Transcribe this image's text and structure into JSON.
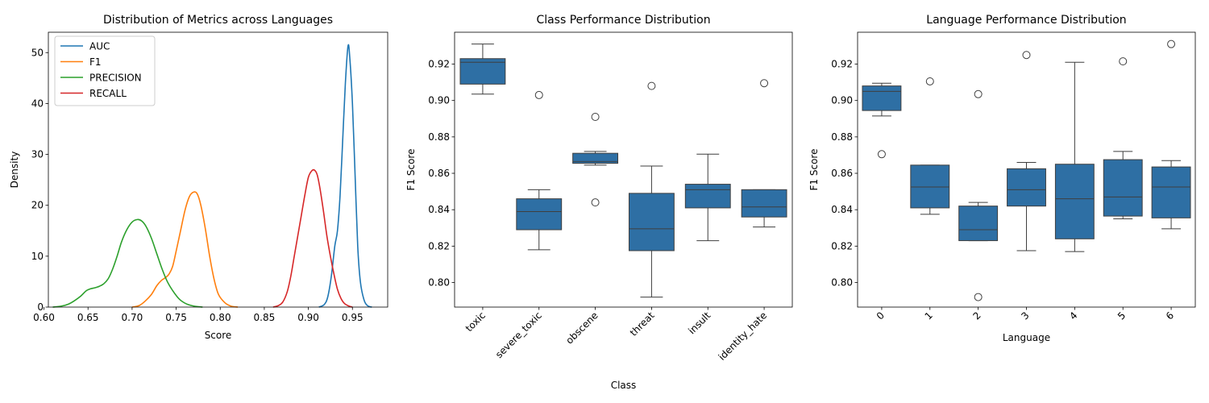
{
  "chart_data": [
    {
      "type": "line",
      "subtype": "kde",
      "title": "Distribution of Metrics across Languages",
      "xlabel": "Score",
      "ylabel": "Density",
      "xlim": [
        0.605,
        0.99
      ],
      "ylim": [
        0,
        54
      ],
      "xticks": [
        0.6,
        0.65,
        0.7,
        0.75,
        0.8,
        0.85,
        0.9,
        0.95
      ],
      "xtick_labels": [
        "0.60",
        "0.65",
        "0.70",
        "0.75",
        "0.80",
        "0.85",
        "0.90",
        "0.95"
      ],
      "yticks": [
        0,
        10,
        20,
        30,
        40,
        50
      ],
      "ytick_labels": [
        "0",
        "10",
        "20",
        "30",
        "40",
        "50"
      ],
      "legend_position": "top-left",
      "grid": false,
      "series": [
        {
          "name": "AUC",
          "color": "#1f77b4",
          "points": [
            [
              0.912,
              0
            ],
            [
              0.918,
              0.5
            ],
            [
              0.922,
              2
            ],
            [
              0.926,
              6
            ],
            [
              0.93,
              12
            ],
            [
              0.933,
              15
            ],
            [
              0.936,
              22
            ],
            [
              0.939,
              33
            ],
            [
              0.942,
              44
            ],
            [
              0.945,
              51.3
            ],
            [
              0.947,
              49
            ],
            [
              0.95,
              40
            ],
            [
              0.953,
              26
            ],
            [
              0.956,
              12
            ],
            [
              0.959,
              5
            ],
            [
              0.963,
              1.5
            ],
            [
              0.967,
              0.3
            ],
            [
              0.972,
              0
            ]
          ]
        },
        {
          "name": "F1",
          "color": "#ff7f0e",
          "points": [
            [
              0.7,
              0
            ],
            [
              0.708,
              0.3
            ],
            [
              0.715,
              1.2
            ],
            [
              0.722,
              2.5
            ],
            [
              0.728,
              4.2
            ],
            [
              0.733,
              5.2
            ],
            [
              0.738,
              5.8
            ],
            [
              0.742,
              6.5
            ],
            [
              0.746,
              8
            ],
            [
              0.75,
              11
            ],
            [
              0.755,
              15
            ],
            [
              0.76,
              19
            ],
            [
              0.765,
              21.7
            ],
            [
              0.77,
              22.6
            ],
            [
              0.774,
              22.2
            ],
            [
              0.778,
              20
            ],
            [
              0.783,
              15.5
            ],
            [
              0.788,
              10
            ],
            [
              0.793,
              5.5
            ],
            [
              0.798,
              2.5
            ],
            [
              0.805,
              0.9
            ],
            [
              0.812,
              0.2
            ],
            [
              0.82,
              0
            ]
          ]
        },
        {
          "name": "PRECISION",
          "color": "#2ca02c",
          "points": [
            [
              0.61,
              0
            ],
            [
              0.62,
              0.2
            ],
            [
              0.628,
              0.6
            ],
            [
              0.635,
              1.3
            ],
            [
              0.642,
              2.2
            ],
            [
              0.648,
              3.2
            ],
            [
              0.653,
              3.6
            ],
            [
              0.658,
              3.8
            ],
            [
              0.663,
              4.1
            ],
            [
              0.668,
              4.6
            ],
            [
              0.673,
              5.6
            ],
            [
              0.678,
              7.5
            ],
            [
              0.683,
              10
            ],
            [
              0.688,
              12.8
            ],
            [
              0.694,
              15.2
            ],
            [
              0.7,
              16.7
            ],
            [
              0.706,
              17.2
            ],
            [
              0.711,
              16.9
            ],
            [
              0.716,
              15.8
            ],
            [
              0.722,
              13.5
            ],
            [
              0.728,
              10.5
            ],
            [
              0.734,
              7.5
            ],
            [
              0.74,
              5
            ],
            [
              0.747,
              3
            ],
            [
              0.754,
              1.5
            ],
            [
              0.762,
              0.6
            ],
            [
              0.77,
              0.2
            ],
            [
              0.78,
              0
            ]
          ]
        },
        {
          "name": "RECALL",
          "color": "#d62728",
          "points": [
            [
              0.86,
              0
            ],
            [
              0.866,
              0.3
            ],
            [
              0.871,
              1
            ],
            [
              0.876,
              3
            ],
            [
              0.88,
              6
            ],
            [
              0.884,
              10
            ],
            [
              0.888,
              14
            ],
            [
              0.892,
              18
            ],
            [
              0.896,
              22
            ],
            [
              0.9,
              25.5
            ],
            [
              0.904,
              26.8
            ],
            [
              0.907,
              26.9
            ],
            [
              0.91,
              26
            ],
            [
              0.913,
              23.5
            ],
            [
              0.917,
              19
            ],
            [
              0.921,
              14
            ],
            [
              0.925,
              10
            ],
            [
              0.929,
              6.5
            ],
            [
              0.933,
              3.5
            ],
            [
              0.937,
              1.7
            ],
            [
              0.941,
              0.7
            ],
            [
              0.946,
              0.2
            ],
            [
              0.95,
              0
            ]
          ]
        }
      ]
    },
    {
      "type": "box",
      "title": "Class Performance Distribution",
      "xlabel": "Class",
      "ylabel": "F1 Score",
      "color": "#2e6fa4",
      "ylim": [
        0.7865,
        0.9375
      ],
      "yticks": [
        0.8,
        0.82,
        0.84,
        0.86,
        0.88,
        0.9,
        0.92
      ],
      "ytick_labels": [
        "0.80",
        "0.82",
        "0.84",
        "0.86",
        "0.88",
        "0.90",
        "0.92"
      ],
      "x_tick_rotation": 45,
      "categories": [
        "toxic",
        "severe_toxic",
        "obscene",
        "threat",
        "insult",
        "identity_hate"
      ],
      "boxes": [
        {
          "whislo": 0.9035,
          "q1": 0.909,
          "med": 0.921,
          "q3": 0.923,
          "whishi": 0.931,
          "fliers": []
        },
        {
          "whislo": 0.818,
          "q1": 0.829,
          "med": 0.839,
          "q3": 0.846,
          "whishi": 0.851,
          "fliers": [
            0.903
          ]
        },
        {
          "whislo": 0.8645,
          "q1": 0.8655,
          "med": 0.8665,
          "q3": 0.871,
          "whishi": 0.872,
          "fliers": [
            0.891,
            0.844
          ]
        },
        {
          "whislo": 0.792,
          "q1": 0.8175,
          "med": 0.8295,
          "q3": 0.849,
          "whishi": 0.864,
          "fliers": [
            0.908
          ]
        },
        {
          "whislo": 0.823,
          "q1": 0.841,
          "med": 0.851,
          "q3": 0.854,
          "whishi": 0.8705,
          "fliers": []
        },
        {
          "whislo": 0.8305,
          "q1": 0.836,
          "med": 0.8415,
          "q3": 0.851,
          "whishi": 0.851,
          "fliers": [
            0.9095
          ]
        }
      ]
    },
    {
      "type": "box",
      "title": "Language Performance Distribution",
      "xlabel": "Language",
      "ylabel": "F1 Score",
      "color": "#2e6fa4",
      "ylim": [
        0.7865,
        0.9375
      ],
      "yticks": [
        0.8,
        0.82,
        0.84,
        0.86,
        0.88,
        0.9,
        0.92
      ],
      "ytick_labels": [
        "0.80",
        "0.82",
        "0.84",
        "0.86",
        "0.88",
        "0.90",
        "0.92"
      ],
      "x_tick_rotation": 45,
      "categories": [
        "0",
        "1",
        "2",
        "3",
        "4",
        "5",
        "6"
      ],
      "boxes": [
        {
          "whislo": 0.8915,
          "q1": 0.8945,
          "med": 0.905,
          "q3": 0.908,
          "whishi": 0.9095,
          "fliers": [
            0.8705
          ]
        },
        {
          "whislo": 0.8375,
          "q1": 0.841,
          "med": 0.8525,
          "q3": 0.8645,
          "whishi": 0.8645,
          "fliers": [
            0.9105
          ]
        },
        {
          "whislo": 0.823,
          "q1": 0.823,
          "med": 0.829,
          "q3": 0.842,
          "whishi": 0.844,
          "fliers": [
            0.9035,
            0.792
          ]
        },
        {
          "whislo": 0.8175,
          "q1": 0.842,
          "med": 0.851,
          "q3": 0.8625,
          "whishi": 0.866,
          "fliers": [
            0.925
          ]
        },
        {
          "whislo": 0.817,
          "q1": 0.824,
          "med": 0.846,
          "q3": 0.865,
          "whishi": 0.921,
          "fliers": []
        },
        {
          "whislo": 0.835,
          "q1": 0.8365,
          "med": 0.847,
          "q3": 0.8675,
          "whishi": 0.872,
          "fliers": [
            0.9215
          ]
        },
        {
          "whislo": 0.8295,
          "q1": 0.8355,
          "med": 0.8525,
          "q3": 0.8635,
          "whishi": 0.867,
          "fliers": [
            0.931
          ]
        }
      ]
    }
  ]
}
